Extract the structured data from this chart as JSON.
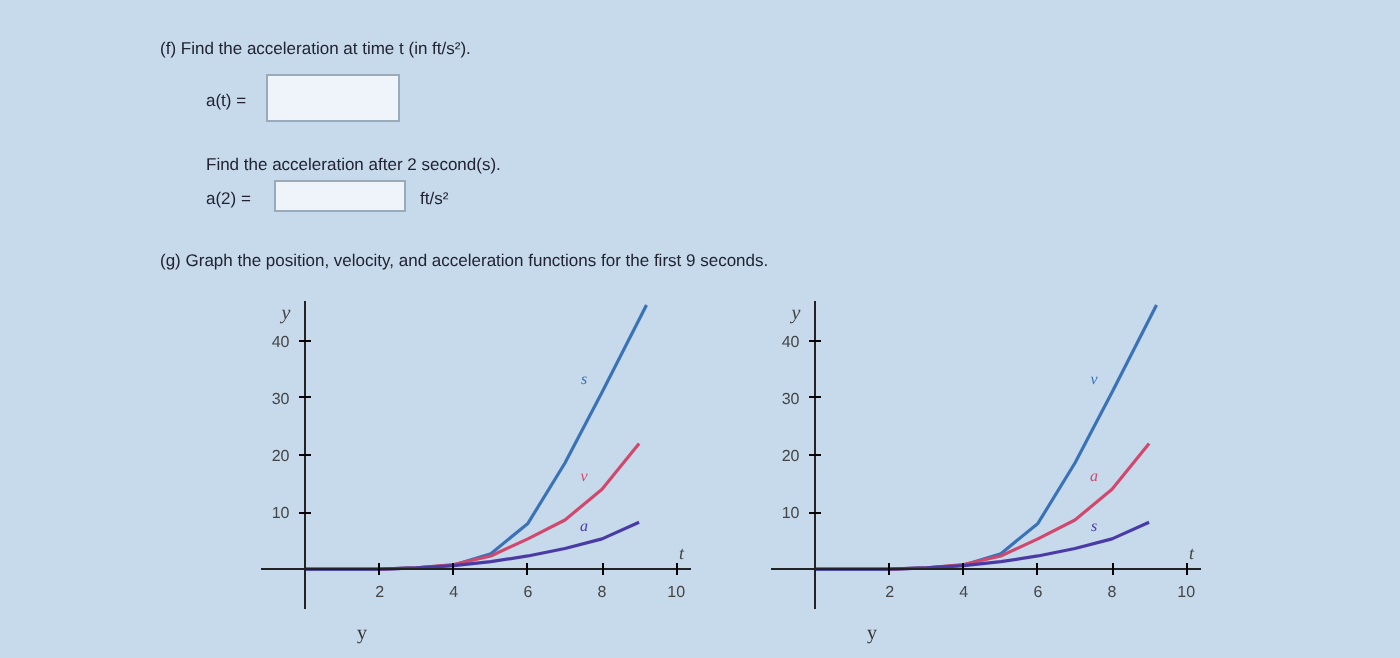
{
  "chart_data": [
    {
      "type": "other",
      "annotations": [
        "(f) Find the acceleration at time t (in ft/s²).",
        "a(t) =",
        "Find the acceleration after 2 second(s).",
        "a(2) =",
        "ft/s²",
        "(g) Graph the position, velocity, and acceleration functions for the first 9 seconds."
      ]
    },
    {
      "type": "line",
      "xlabel": "t",
      "ylabel": "y",
      "xlim": [
        -1.2,
        10.4
      ],
      "ylim": [
        -7,
        47
      ],
      "xticks": [
        2,
        4,
        6,
        8,
        10
      ],
      "yticks": [
        10,
        20,
        30,
        40
      ],
      "grid": false,
      "annotations": [
        "y"
      ],
      "x": [
        0,
        1,
        2,
        3,
        4,
        5,
        6,
        7,
        8,
        9
      ],
      "series": [
        {
          "name": "s",
          "color": "#3a72b8",
          "x": [
            0,
            1,
            2,
            3,
            4,
            5,
            6,
            7,
            8,
            9.2
          ],
          "values": [
            0,
            0,
            0,
            0.2,
            0.7,
            2.7,
            8,
            18.6,
            31,
            46.3
          ]
        },
        {
          "name": "v",
          "color": "#d2486c",
          "values": [
            null,
            null,
            0,
            0.2,
            0.8,
            2.3,
            5.3,
            8.6,
            14,
            22
          ]
        },
        {
          "name": "a",
          "color": "#4a3aa6",
          "values": [
            0,
            0,
            0,
            0.2,
            0.6,
            1.3,
            2.3,
            3.6,
            5.3,
            8.2
          ]
        }
      ]
    },
    {
      "type": "line",
      "xlabel": "t",
      "ylabel": "y",
      "xlim": [
        -1.2,
        10.4
      ],
      "ylim": [
        -7,
        47
      ],
      "xticks": [
        2,
        4,
        6,
        8,
        10
      ],
      "yticks": [
        10,
        20,
        30,
        40
      ],
      "grid": false,
      "annotations": [
        "y"
      ],
      "x": [
        0,
        1,
        2,
        3,
        4,
        5,
        6,
        7,
        8,
        9
      ],
      "series": [
        {
          "name": "v",
          "color": "#3a72b8",
          "x": [
            0,
            1,
            2,
            3,
            4,
            5,
            6,
            7,
            8,
            9.2
          ],
          "values": [
            0,
            0,
            0,
            0.2,
            0.7,
            2.7,
            8,
            18.6,
            31,
            46.3
          ]
        },
        {
          "name": "a",
          "color": "#d2486c",
          "values": [
            null,
            null,
            0,
            0.2,
            0.8,
            2.3,
            5.3,
            8.6,
            14,
            22
          ]
        },
        {
          "name": "s",
          "color": "#4a3aa6",
          "values": [
            0,
            0,
            0,
            0.2,
            0.6,
            1.3,
            2.3,
            3.6,
            5.3,
            8.2
          ]
        }
      ]
    }
  ]
}
